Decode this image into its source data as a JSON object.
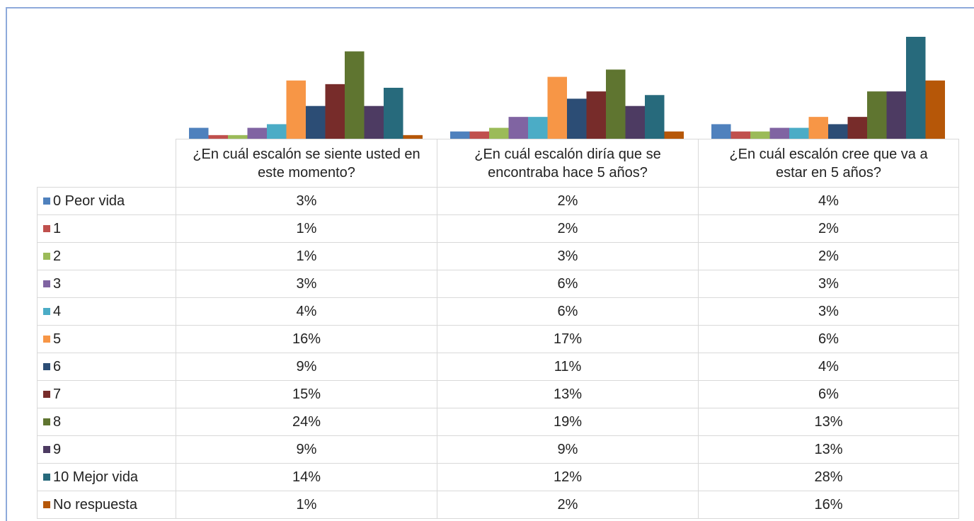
{
  "chart_data": {
    "type": "bar",
    "categories": [
      "¿En cuál escalón se siente usted en este momento?",
      "¿En cuál escalón diría que se encontraba hace 5 años?",
      "¿En cuál escalón cree que va a estar en 5 años?"
    ],
    "series": [
      {
        "name": "0 Peor vida",
        "color": "#4f81bd",
        "values": [
          3,
          2,
          4
        ],
        "value_labels": [
          "3%",
          "2%",
          "4%"
        ]
      },
      {
        "name": "1",
        "color": "#c0504d",
        "values": [
          1,
          2,
          2
        ],
        "value_labels": [
          "1%",
          "2%",
          "2%"
        ]
      },
      {
        "name": "2",
        "color": "#9bbb59",
        "values": [
          1,
          3,
          2
        ],
        "value_labels": [
          "1%",
          "3%",
          "2%"
        ]
      },
      {
        "name": "3",
        "color": "#8064a2",
        "values": [
          3,
          6,
          3
        ],
        "value_labels": [
          "3%",
          "6%",
          "3%"
        ]
      },
      {
        "name": "4",
        "color": "#4bacc6",
        "values": [
          4,
          6,
          3
        ],
        "value_labels": [
          "4%",
          "6%",
          "3%"
        ]
      },
      {
        "name": "5",
        "color": "#f79646",
        "values": [
          16,
          17,
          6
        ],
        "value_labels": [
          "16%",
          "17%",
          "6%"
        ]
      },
      {
        "name": "6",
        "color": "#2c4d75",
        "values": [
          9,
          11,
          4
        ],
        "value_labels": [
          "9%",
          "11%",
          "4%"
        ]
      },
      {
        "name": "7",
        "color": "#772c2a",
        "values": [
          15,
          13,
          6
        ],
        "value_labels": [
          "15%",
          "13%",
          "6%"
        ]
      },
      {
        "name": "8",
        "color": "#5f7530",
        "values": [
          24,
          19,
          13
        ],
        "value_labels": [
          "24%",
          "19%",
          "13%"
        ]
      },
      {
        "name": "9",
        "color": "#4d3b62",
        "values": [
          9,
          9,
          13
        ],
        "value_labels": [
          "9%",
          "9%",
          "13%"
        ]
      },
      {
        "name": "10 Mejor vida",
        "color": "#276a7c",
        "values": [
          14,
          12,
          28
        ],
        "value_labels": [
          "14%",
          "12%",
          "28%"
        ]
      },
      {
        "name": "No respuesta",
        "color": "#b65708",
        "values": [
          1,
          2,
          16
        ],
        "value_labels": [
          "1%",
          "2%",
          "16%"
        ]
      }
    ]
  }
}
